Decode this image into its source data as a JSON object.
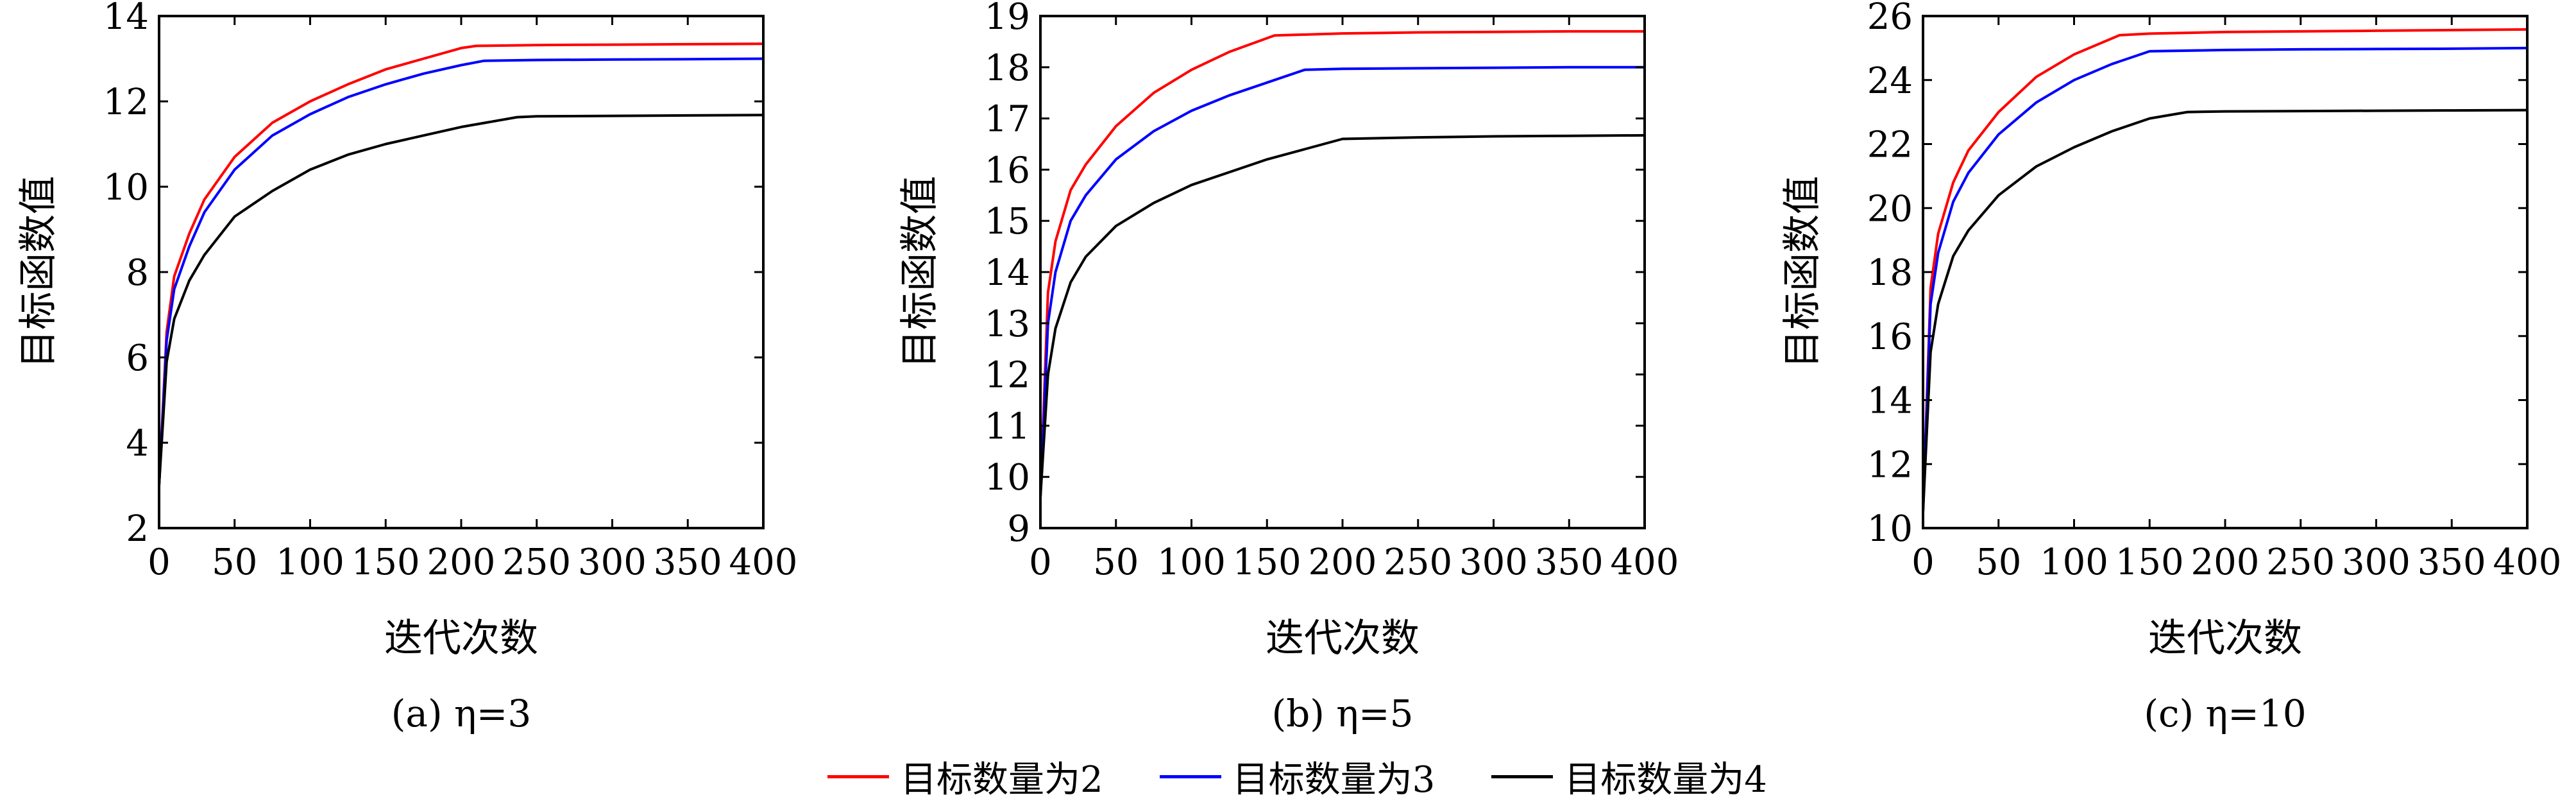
{
  "legend": {
    "items": [
      {
        "label": "目标数量为2",
        "color": "#ff0000"
      },
      {
        "label": "目标数量为3",
        "color": "#0000ff"
      },
      {
        "label": "目标数量为4",
        "color": "#000000"
      }
    ]
  },
  "chart_data": [
    {
      "type": "line",
      "caption": "(a) η=3",
      "xlabel": "迭代次数",
      "ylabel": "目标函数值",
      "xlim": [
        0,
        400
      ],
      "ylim": [
        2,
        14
      ],
      "xticks": [
        0,
        50,
        100,
        150,
        200,
        250,
        300,
        350,
        400
      ],
      "yticks": [
        2,
        4,
        6,
        8,
        10,
        12,
        14
      ],
      "series": [
        {
          "name": "目标数量为2",
          "color": "#ff0000",
          "x": [
            0,
            5,
            10,
            20,
            30,
            50,
            75,
            100,
            125,
            150,
            175,
            200,
            210,
            250,
            300,
            350,
            400
          ],
          "y": [
            3,
            6.6,
            7.9,
            8.9,
            9.7,
            10.7,
            11.5,
            12.0,
            12.4,
            12.75,
            13.0,
            13.25,
            13.3,
            13.32,
            13.33,
            13.34,
            13.35
          ]
        },
        {
          "name": "目标数量为3",
          "color": "#0000ff",
          "x": [
            0,
            5,
            10,
            20,
            30,
            50,
            75,
            100,
            125,
            150,
            175,
            200,
            215,
            250,
            300,
            350,
            400
          ],
          "y": [
            3,
            6.4,
            7.6,
            8.6,
            9.4,
            10.4,
            11.2,
            11.7,
            12.1,
            12.4,
            12.65,
            12.85,
            12.95,
            12.97,
            12.98,
            12.99,
            13.0
          ]
        },
        {
          "name": "目标数量为4",
          "color": "#000000",
          "x": [
            0,
            5,
            10,
            20,
            30,
            50,
            75,
            100,
            125,
            150,
            175,
            200,
            237,
            250,
            300,
            350,
            400
          ],
          "y": [
            3,
            5.9,
            6.9,
            7.8,
            8.4,
            9.3,
            9.9,
            10.4,
            10.75,
            11.0,
            11.2,
            11.4,
            11.63,
            11.65,
            11.66,
            11.67,
            11.68
          ]
        }
      ]
    },
    {
      "type": "line",
      "caption": "(b) η=5",
      "xlabel": "迭代次数",
      "ylabel": "目标函数值",
      "xlim": [
        0,
        400
      ],
      "ylim": [
        9,
        19
      ],
      "xticks": [
        0,
        50,
        100,
        150,
        200,
        250,
        300,
        350,
        400
      ],
      "yticks": [
        9,
        10,
        11,
        12,
        13,
        14,
        15,
        16,
        17,
        18,
        19
      ],
      "series": [
        {
          "name": "目标数量为2",
          "color": "#ff0000",
          "x": [
            0,
            5,
            10,
            20,
            30,
            50,
            75,
            100,
            125,
            155,
            200,
            250,
            300,
            350,
            400
          ],
          "y": [
            9.6,
            13.6,
            14.6,
            15.6,
            16.1,
            16.85,
            17.5,
            17.95,
            18.3,
            18.62,
            18.66,
            18.68,
            18.69,
            18.7,
            18.7
          ]
        },
        {
          "name": "目标数量为3",
          "color": "#0000ff",
          "x": [
            0,
            5,
            10,
            20,
            30,
            50,
            75,
            100,
            125,
            150,
            175,
            200,
            250,
            300,
            350,
            400
          ],
          "y": [
            9.6,
            13.0,
            14.0,
            15.0,
            15.5,
            16.2,
            16.75,
            17.15,
            17.45,
            17.7,
            17.95,
            17.97,
            17.98,
            17.99,
            18.0,
            18.0
          ]
        },
        {
          "name": "目标数量为4",
          "color": "#000000",
          "x": [
            0,
            5,
            10,
            20,
            30,
            50,
            75,
            100,
            125,
            150,
            175,
            200,
            250,
            300,
            350,
            400
          ],
          "y": [
            9.6,
            12.0,
            12.9,
            13.8,
            14.3,
            14.9,
            15.35,
            15.7,
            15.95,
            16.2,
            16.4,
            16.6,
            16.63,
            16.65,
            16.66,
            16.67
          ]
        }
      ]
    },
    {
      "type": "line",
      "caption": "(c) η=10",
      "xlabel": "迭代次数",
      "ylabel": "目标函数值",
      "xlim": [
        0,
        400
      ],
      "ylim": [
        10,
        26
      ],
      "xticks": [
        0,
        50,
        100,
        150,
        200,
        250,
        300,
        350,
        400
      ],
      "yticks": [
        10,
        12,
        14,
        16,
        18,
        20,
        22,
        24,
        26
      ],
      "series": [
        {
          "name": "目标数量为2",
          "color": "#ff0000",
          "x": [
            0,
            5,
            10,
            20,
            30,
            50,
            75,
            100,
            130,
            150,
            200,
            250,
            300,
            350,
            400
          ],
          "y": [
            10.5,
            17.5,
            19.2,
            20.8,
            21.8,
            23.0,
            24.1,
            24.8,
            25.4,
            25.45,
            25.5,
            25.52,
            25.54,
            25.56,
            25.58
          ]
        },
        {
          "name": "目标数量为3",
          "color": "#0000ff",
          "x": [
            0,
            5,
            10,
            20,
            30,
            50,
            75,
            100,
            125,
            150,
            200,
            250,
            300,
            350,
            400
          ],
          "y": [
            10.5,
            17.0,
            18.6,
            20.2,
            21.1,
            22.3,
            23.3,
            24.0,
            24.5,
            24.9,
            24.94,
            24.96,
            24.97,
            24.98,
            25.0
          ]
        },
        {
          "name": "目标数量为4",
          "color": "#000000",
          "x": [
            0,
            5,
            10,
            20,
            30,
            50,
            75,
            100,
            125,
            150,
            175,
            200,
            250,
            300,
            350,
            400
          ],
          "y": [
            10.5,
            15.5,
            17.0,
            18.5,
            19.3,
            20.4,
            21.3,
            21.9,
            22.4,
            22.8,
            23.0,
            23.02,
            23.03,
            23.04,
            23.05,
            23.06
          ]
        }
      ]
    }
  ]
}
